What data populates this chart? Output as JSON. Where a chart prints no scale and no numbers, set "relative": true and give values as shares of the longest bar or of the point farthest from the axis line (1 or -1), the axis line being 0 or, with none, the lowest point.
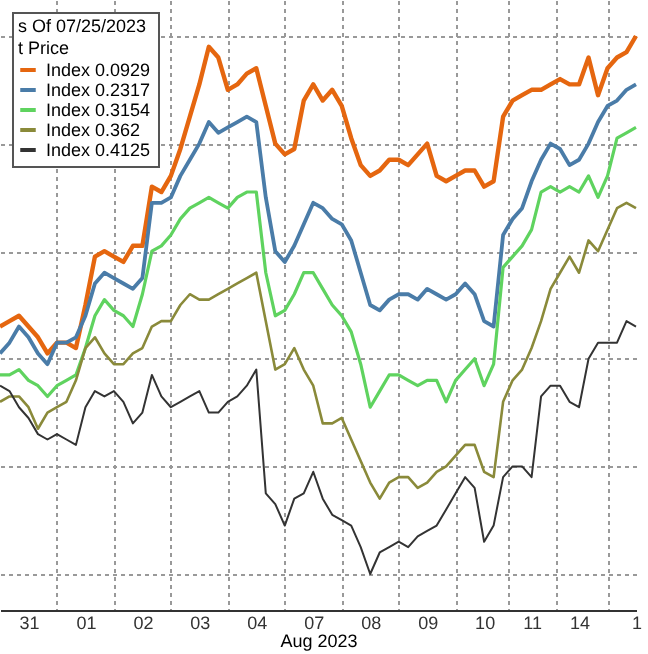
{
  "chart_data": {
    "type": "line",
    "relative": true,
    "xlabel": "Aug 2023",
    "legend_title": "s Of 07/25/2023\nt Price",
    "legend": "top left",
    "grid": true,
    "categories": [
      null,
      null,
      null,
      "31",
      null,
      null,
      null,
      null,
      null,
      "01",
      null,
      null,
      null,
      null,
      null,
      "02",
      null,
      null,
      null,
      null,
      null,
      "03",
      null,
      null,
      null,
      null,
      null,
      "04",
      null,
      null,
      null,
      null,
      null,
      "07",
      null,
      null,
      null,
      null,
      null,
      "08",
      null,
      null,
      null,
      null,
      null,
      "09",
      null,
      null,
      null,
      null,
      null,
      "10",
      null,
      null,
      null,
      null,
      "11",
      null,
      null,
      null,
      null,
      "14",
      null,
      null,
      null,
      null,
      null,
      "1"
    ],
    "series": [
      {
        "name": "Index 0.0929",
        "color": "#e5660f",
        "values": [
          0.46,
          0.47,
          0.48,
          0.46,
          0.44,
          0.41,
          0.43,
          0.43,
          0.42,
          0.5,
          0.59,
          0.6,
          0.59,
          0.58,
          0.61,
          0.61,
          0.72,
          0.71,
          0.74,
          0.79,
          0.85,
          0.91,
          0.98,
          0.96,
          0.9,
          0.91,
          0.93,
          0.94,
          0.87,
          0.8,
          0.78,
          0.79,
          0.88,
          0.91,
          0.88,
          0.9,
          0.87,
          0.81,
          0.76,
          0.74,
          0.75,
          0.77,
          0.77,
          0.76,
          0.78,
          0.8,
          0.74,
          0.73,
          0.74,
          0.75,
          0.75,
          0.72,
          0.73,
          0.85,
          0.88,
          0.89,
          0.9,
          0.9,
          0.91,
          0.92,
          0.91,
          0.91,
          0.96,
          0.89,
          0.94,
          0.96,
          0.97,
          1.0
        ]
      },
      {
        "name": "Index 0.2317",
        "color": "#4a7ca8",
        "values": [
          0.41,
          0.43,
          0.46,
          0.44,
          0.41,
          0.39,
          0.43,
          0.43,
          0.44,
          0.48,
          0.54,
          0.56,
          0.55,
          0.54,
          0.53,
          0.55,
          0.69,
          0.69,
          0.7,
          0.74,
          0.77,
          0.8,
          0.84,
          0.82,
          0.83,
          0.84,
          0.85,
          0.84,
          0.7,
          0.6,
          0.58,
          0.61,
          0.65,
          0.69,
          0.68,
          0.66,
          0.65,
          0.62,
          0.56,
          0.5,
          0.49,
          0.51,
          0.52,
          0.52,
          0.51,
          0.53,
          0.52,
          0.51,
          0.52,
          0.54,
          0.52,
          0.47,
          0.46,
          0.63,
          0.66,
          0.68,
          0.73,
          0.77,
          0.8,
          0.79,
          0.76,
          0.77,
          0.8,
          0.84,
          0.87,
          0.88,
          0.9,
          0.91
        ]
      },
      {
        "name": "Index 0.3154",
        "color": "#5fd35f",
        "values": [
          0.37,
          0.37,
          0.38,
          0.36,
          0.35,
          0.33,
          0.35,
          0.36,
          0.37,
          0.42,
          0.48,
          0.51,
          0.49,
          0.48,
          0.46,
          0.52,
          0.6,
          0.61,
          0.63,
          0.66,
          0.68,
          0.69,
          0.7,
          0.69,
          0.68,
          0.7,
          0.71,
          0.71,
          0.56,
          0.48,
          0.49,
          0.52,
          0.56,
          0.56,
          0.53,
          0.5,
          0.48,
          0.45,
          0.39,
          0.31,
          0.34,
          0.37,
          0.37,
          0.36,
          0.35,
          0.36,
          0.36,
          0.32,
          0.36,
          0.38,
          0.4,
          0.35,
          0.39,
          0.57,
          0.59,
          0.61,
          0.64,
          0.71,
          0.72,
          0.71,
          0.72,
          0.71,
          0.74,
          0.7,
          0.74,
          0.81,
          0.82,
          0.83
        ]
      },
      {
        "name": "Index 0.362",
        "color": "#8a8a3a",
        "values": [
          0.32,
          0.33,
          0.33,
          0.31,
          0.27,
          0.3,
          0.31,
          0.32,
          0.36,
          0.42,
          0.44,
          0.41,
          0.39,
          0.39,
          0.41,
          0.42,
          0.46,
          0.47,
          0.47,
          0.5,
          0.52,
          0.51,
          0.51,
          0.52,
          0.53,
          0.54,
          0.55,
          0.56,
          0.47,
          0.38,
          0.39,
          0.42,
          0.38,
          0.35,
          0.28,
          0.28,
          0.29,
          0.25,
          0.21,
          0.17,
          0.14,
          0.17,
          0.18,
          0.18,
          0.16,
          0.17,
          0.19,
          0.2,
          0.22,
          0.24,
          0.24,
          0.19,
          0.18,
          0.32,
          0.36,
          0.38,
          0.42,
          0.47,
          0.53,
          0.56,
          0.59,
          0.56,
          0.62,
          0.6,
          0.64,
          0.68,
          0.69,
          0.68
        ]
      },
      {
        "name": "Index 0.4125",
        "color": "#333333",
        "values": [
          0.35,
          0.34,
          0.31,
          0.29,
          0.26,
          0.25,
          0.26,
          0.25,
          0.24,
          0.31,
          0.34,
          0.33,
          0.34,
          0.32,
          0.28,
          0.3,
          0.37,
          0.33,
          0.31,
          0.32,
          0.33,
          0.34,
          0.3,
          0.3,
          0.32,
          0.33,
          0.35,
          0.38,
          0.15,
          0.13,
          0.09,
          0.14,
          0.15,
          0.19,
          0.14,
          0.11,
          0.1,
          0.09,
          0.05,
          0.0,
          0.04,
          0.05,
          0.06,
          0.05,
          0.07,
          0.08,
          0.09,
          0.12,
          0.15,
          0.18,
          0.16,
          0.06,
          0.09,
          0.18,
          0.2,
          0.2,
          0.18,
          0.33,
          0.35,
          0.35,
          0.32,
          0.31,
          0.4,
          0.43,
          0.43,
          0.43,
          0.47,
          0.46
        ]
      }
    ]
  }
}
